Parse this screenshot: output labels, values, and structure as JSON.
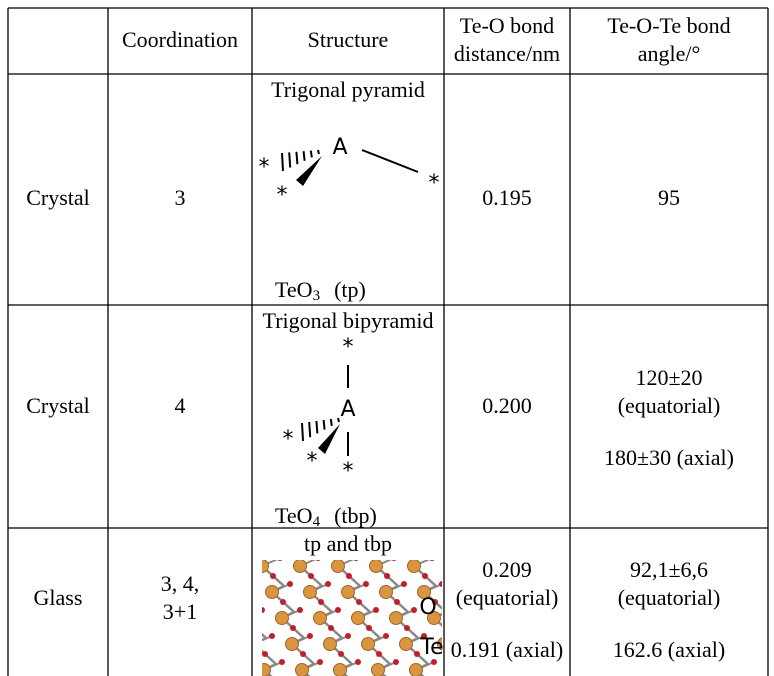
{
  "table": {
    "header": {
      "coordination": "Coordination",
      "structure": "Structure",
      "bond_distance": [
        "Te-O bond",
        "distance/nm"
      ],
      "bond_angle": [
        "Te-O-Te bond",
        "angle/°"
      ]
    },
    "rows": [
      {
        "phase": "Crystal",
        "coordination": [
          "3"
        ],
        "structure": {
          "caption": "Trigonal pyramid",
          "formula": {
            "base": "TeO",
            "subscript": "3",
            "label": "(tp)"
          },
          "atoms": {
            "center": "A",
            "ligand": "*"
          }
        },
        "bond_distance": [
          "0.195"
        ],
        "bond_angle": [
          "95"
        ]
      },
      {
        "phase": "Crystal",
        "coordination": [
          "4"
        ],
        "structure": {
          "caption": "Trigonal bipyramid",
          "formula": {
            "base": "TeO",
            "subscript": "4",
            "label": "(tbp)"
          },
          "atoms": {
            "center": "A",
            "ligand": "*"
          }
        },
        "bond_distance": [
          "0.200"
        ],
        "bond_angle": [
          "120±20",
          "(equatorial)",
          "180±30 (axial)"
        ]
      },
      {
        "phase": "Glass",
        "coordination": [
          "3, 4,",
          "3+1"
        ],
        "structure": {
          "caption": "tp and tbp",
          "atoms": {
            "oxygen": "O",
            "tellurium": "Te"
          }
        },
        "bond_distance": [
          "0.209",
          "(equatorial)",
          "0.191 (axial)"
        ],
        "bond_angle": [
          "92,1±6,6",
          "(equatorial)",
          "162.6 (axial)"
        ]
      }
    ]
  }
}
